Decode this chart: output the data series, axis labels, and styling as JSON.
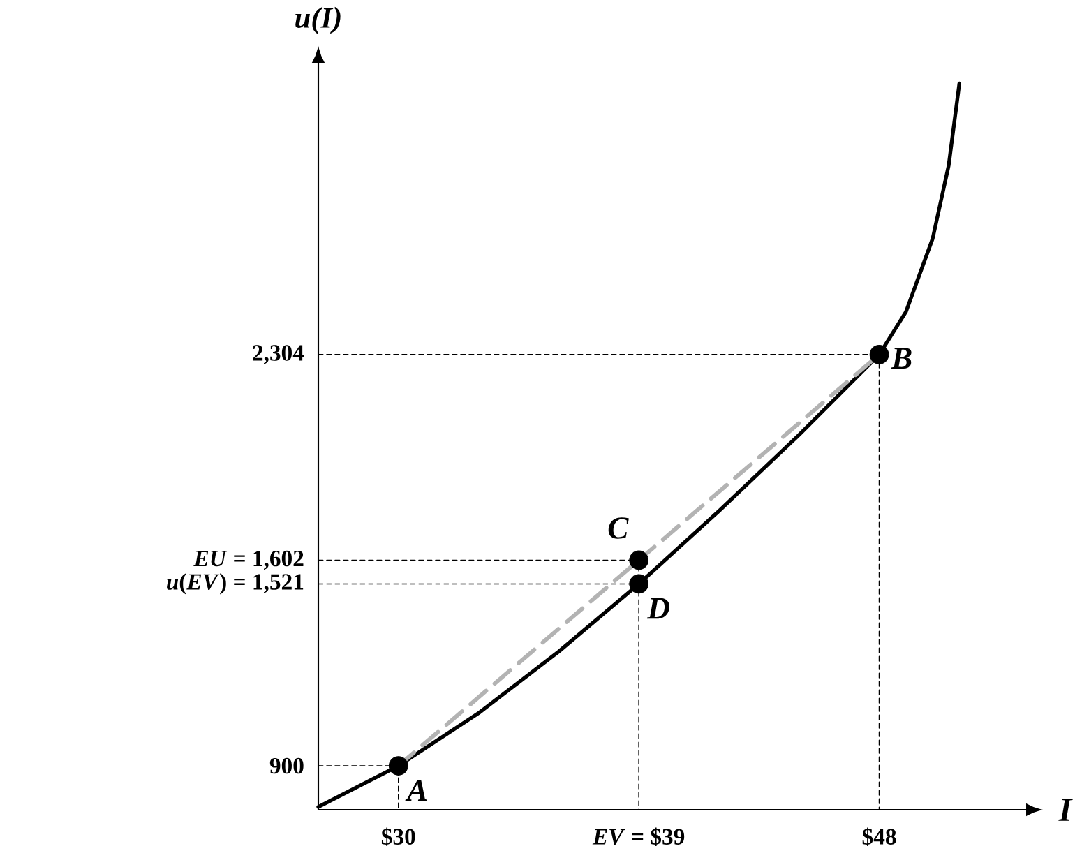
{
  "chart_data": {
    "type": "line",
    "xlabel": "I",
    "ylabel": "u(I)",
    "xlim": [
      27,
      53.5
    ],
    "ylim": [
      750,
      3300
    ],
    "xticks": [
      {
        "value": 30,
        "label": "$30"
      },
      {
        "value": 39,
        "label": "*EV* = $39"
      },
      {
        "value": 48,
        "label": "$48"
      }
    ],
    "yticks": [
      900,
      {
        "value": 1521,
        "label": "*u*(*EV*) = 1,521"
      },
      {
        "value": 1602,
        "label": "*EU* = 1,602"
      },
      {
        "value": 2304,
        "label": "2,304"
      }
    ],
    "series": [
      {
        "color": "#000000",
        "line_style": "solid",
        "x": [
          27,
          30,
          33,
          36,
          39,
          42,
          45,
          48,
          49,
          50,
          50.6,
          51
        ],
        "values": [
          760,
          900,
          1080,
          1290,
          1521,
          1770,
          2030,
          2304,
          2450,
          2700,
          2950,
          3230
        ]
      },
      {
        "color": "#b3b3b3",
        "line_style": "dashed",
        "x": [
          30,
          48
        ],
        "values": [
          900,
          2304
        ]
      },
      {
        "color": "#000000",
        "line_style": "dotted",
        "x": [
          27,
          30,
          30
        ],
        "values": [
          900,
          900,
          750
        ]
      },
      {
        "color": "#000000",
        "line_style": "dotted",
        "x": [
          27,
          48,
          48
        ],
        "values": [
          2304,
          2304,
          750
        ]
      },
      {
        "color": "#000000",
        "line_style": "dotted",
        "x": [
          27,
          39,
          39
        ],
        "values": [
          1602,
          1602,
          750
        ]
      },
      {
        "color": "#000000",
        "line_style": "dotted",
        "x": [
          27,
          39
        ],
        "values": [
          1521,
          1521
        ]
      },
      {
        "type": "scatter",
        "color": "#000000",
        "marker": "circle",
        "x": [
          30,
          48,
          39,
          39
        ],
        "values": [
          900,
          2304,
          1602,
          1521
        ]
      }
    ],
    "annotations": [
      {
        "text": "A",
        "x": 30,
        "y": 900
      },
      {
        "text": "B",
        "x": 48,
        "y": 2304
      },
      {
        "text": "C",
        "x": 39,
        "y": 1602
      },
      {
        "text": "D",
        "x": 39,
        "y": 1521
      }
    ]
  }
}
